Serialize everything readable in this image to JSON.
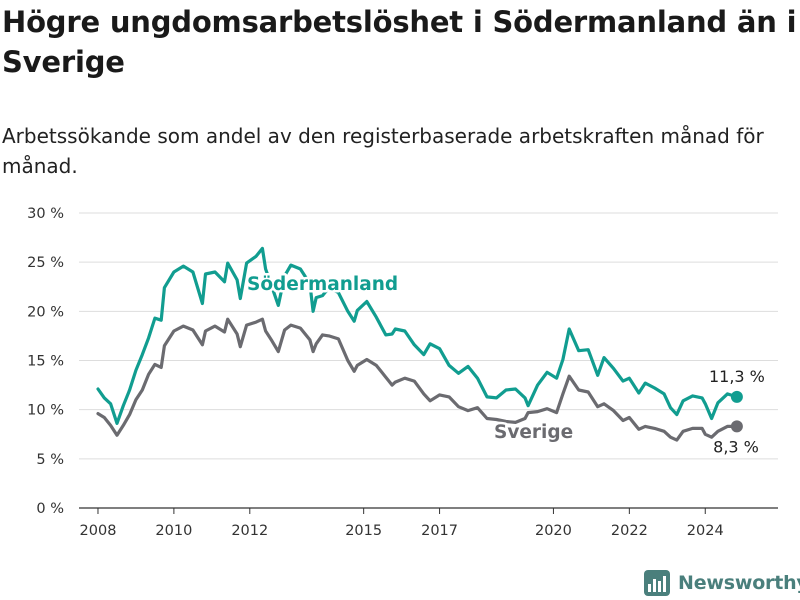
{
  "title": "Högre ungdomsarbetslöshet i Södermanland än i Sverige",
  "subtitle": "Arbetssökande som andel av den registerbaserade arbetskraften månad för månad.",
  "brand": {
    "name": "Newsworthy",
    "icon": "bar-chart-logo-icon"
  },
  "colors": {
    "sodermanland": "#119d90",
    "sverige": "#6b6b70",
    "grid": "#dddddd"
  },
  "chart_data": {
    "type": "line",
    "title": "Högre ungdomsarbetslöshet i Södermanland än i Sverige",
    "subtitle": "Arbetssökande som andel av den registerbaserade arbetskraften månad för månad.",
    "xlabel": "",
    "ylabel": "",
    "x_ticks": [
      "2008",
      "2010",
      "2012",
      "2015",
      "2017",
      "2020",
      "2022",
      "2024"
    ],
    "y_ticks": [
      "0 %",
      "5 %",
      "10 %",
      "15 %",
      "20 %",
      "25 %",
      "30 %"
    ],
    "xlim": [
      "2007-07",
      "2025-12"
    ],
    "ylim": [
      0,
      30
    ],
    "grid": "horizontal",
    "legend": "inline labels",
    "series": [
      {
        "name": "Södermanland",
        "color": "#119d90",
        "end_label": "11,3 %",
        "points": [
          [
            "2008-01",
            12.1
          ],
          [
            "2008-03",
            11.2
          ],
          [
            "2008-05",
            10.6
          ],
          [
            "2008-07",
            8.6
          ],
          [
            "2008-09",
            10.4
          ],
          [
            "2008-11",
            12.0
          ],
          [
            "2009-01",
            14.0
          ],
          [
            "2009-03",
            15.6
          ],
          [
            "2009-05",
            17.3
          ],
          [
            "2009-07",
            19.3
          ],
          [
            "2009-09",
            19.1
          ],
          [
            "2009-10",
            22.4
          ],
          [
            "2010-01",
            24.0
          ],
          [
            "2010-04",
            24.6
          ],
          [
            "2010-07",
            24.0
          ],
          [
            "2010-10",
            20.8
          ],
          [
            "2010-11",
            23.8
          ],
          [
            "2011-02",
            24.0
          ],
          [
            "2011-05",
            23.0
          ],
          [
            "2011-06",
            24.9
          ],
          [
            "2011-09",
            23.2
          ],
          [
            "2011-10",
            21.3
          ],
          [
            "2011-12",
            24.9
          ],
          [
            "2012-03",
            25.6
          ],
          [
            "2012-05",
            26.4
          ],
          [
            "2012-06",
            24.3
          ],
          [
            "2012-08",
            22.5
          ],
          [
            "2012-10",
            20.6
          ],
          [
            "2012-12",
            23.6
          ],
          [
            "2013-02",
            24.7
          ],
          [
            "2013-05",
            24.3
          ],
          [
            "2013-08",
            22.8
          ],
          [
            "2013-09",
            20.0
          ],
          [
            "2013-10",
            21.4
          ],
          [
            "2013-12",
            21.6
          ],
          [
            "2014-02",
            22.4
          ],
          [
            "2014-05",
            21.9
          ],
          [
            "2014-08",
            20.0
          ],
          [
            "2014-10",
            19.0
          ],
          [
            "2014-11",
            20.1
          ],
          [
            "2015-02",
            21.0
          ],
          [
            "2015-05",
            19.4
          ],
          [
            "2015-08",
            17.6
          ],
          [
            "2015-10",
            17.7
          ],
          [
            "2015-11",
            18.2
          ],
          [
            "2016-02",
            18.0
          ],
          [
            "2016-05",
            16.6
          ],
          [
            "2016-08",
            15.6
          ],
          [
            "2016-10",
            16.7
          ],
          [
            "2017-01",
            16.2
          ],
          [
            "2017-04",
            14.5
          ],
          [
            "2017-07",
            13.7
          ],
          [
            "2017-10",
            14.4
          ],
          [
            "2018-01",
            13.2
          ],
          [
            "2018-04",
            11.3
          ],
          [
            "2018-07",
            11.2
          ],
          [
            "2018-10",
            12.0
          ],
          [
            "2019-01",
            12.1
          ],
          [
            "2019-04",
            11.2
          ],
          [
            "2019-05",
            10.4
          ],
          [
            "2019-08",
            12.5
          ],
          [
            "2019-11",
            13.8
          ],
          [
            "2020-02",
            13.2
          ],
          [
            "2020-04",
            15.1
          ],
          [
            "2020-06",
            18.2
          ],
          [
            "2020-09",
            16.0
          ],
          [
            "2020-12",
            16.1
          ],
          [
            "2021-03",
            13.5
          ],
          [
            "2021-05",
            15.3
          ],
          [
            "2021-08",
            14.2
          ],
          [
            "2021-11",
            12.9
          ],
          [
            "2022-01",
            13.2
          ],
          [
            "2022-04",
            11.7
          ],
          [
            "2022-06",
            12.7
          ],
          [
            "2022-09",
            12.2
          ],
          [
            "2022-12",
            11.6
          ],
          [
            "2023-02",
            10.2
          ],
          [
            "2023-04",
            9.5
          ],
          [
            "2023-06",
            10.9
          ],
          [
            "2023-09",
            11.4
          ],
          [
            "2023-12",
            11.2
          ],
          [
            "2024-01",
            10.6
          ],
          [
            "2024-03",
            9.1
          ],
          [
            "2024-05",
            10.7
          ],
          [
            "2024-08",
            11.6
          ],
          [
            "2024-11",
            11.3
          ]
        ]
      },
      {
        "name": "Sverige",
        "color": "#6b6b70",
        "end_label": "8,3 %",
        "points": [
          [
            "2008-01",
            9.6
          ],
          [
            "2008-03",
            9.2
          ],
          [
            "2008-05",
            8.4
          ],
          [
            "2008-07",
            7.4
          ],
          [
            "2008-09",
            8.4
          ],
          [
            "2008-11",
            9.5
          ],
          [
            "2009-01",
            11.0
          ],
          [
            "2009-03",
            12.0
          ],
          [
            "2009-05",
            13.6
          ],
          [
            "2009-07",
            14.6
          ],
          [
            "2009-09",
            14.3
          ],
          [
            "2009-10",
            16.5
          ],
          [
            "2010-01",
            18.0
          ],
          [
            "2010-04",
            18.5
          ],
          [
            "2010-07",
            18.1
          ],
          [
            "2010-10",
            16.6
          ],
          [
            "2010-11",
            18.0
          ],
          [
            "2011-02",
            18.5
          ],
          [
            "2011-05",
            17.9
          ],
          [
            "2011-06",
            19.2
          ],
          [
            "2011-09",
            17.7
          ],
          [
            "2011-10",
            16.4
          ],
          [
            "2011-12",
            18.6
          ],
          [
            "2012-03",
            18.9
          ],
          [
            "2012-05",
            19.2
          ],
          [
            "2012-06",
            18.0
          ],
          [
            "2012-08",
            17.0
          ],
          [
            "2012-10",
            15.9
          ],
          [
            "2012-12",
            18.1
          ],
          [
            "2013-02",
            18.6
          ],
          [
            "2013-05",
            18.3
          ],
          [
            "2013-08",
            17.1
          ],
          [
            "2013-09",
            15.9
          ],
          [
            "2013-10",
            16.7
          ],
          [
            "2013-12",
            17.6
          ],
          [
            "2014-02",
            17.5
          ],
          [
            "2014-05",
            17.2
          ],
          [
            "2014-08",
            15.0
          ],
          [
            "2014-10",
            13.9
          ],
          [
            "2014-11",
            14.5
          ],
          [
            "2015-02",
            15.1
          ],
          [
            "2015-05",
            14.5
          ],
          [
            "2015-08",
            13.3
          ],
          [
            "2015-10",
            12.5
          ],
          [
            "2015-11",
            12.8
          ],
          [
            "2016-02",
            13.2
          ],
          [
            "2016-05",
            12.9
          ],
          [
            "2016-08",
            11.6
          ],
          [
            "2016-10",
            10.9
          ],
          [
            "2017-01",
            11.5
          ],
          [
            "2017-04",
            11.3
          ],
          [
            "2017-07",
            10.3
          ],
          [
            "2017-10",
            9.9
          ],
          [
            "2018-01",
            10.2
          ],
          [
            "2018-04",
            9.1
          ],
          [
            "2018-07",
            9.0
          ],
          [
            "2018-10",
            8.8
          ],
          [
            "2019-01",
            8.7
          ],
          [
            "2019-04",
            9.1
          ],
          [
            "2019-05",
            9.7
          ],
          [
            "2019-08",
            9.8
          ],
          [
            "2019-11",
            10.1
          ],
          [
            "2020-02",
            9.7
          ],
          [
            "2020-04",
            11.6
          ],
          [
            "2020-06",
            13.4
          ],
          [
            "2020-09",
            12.0
          ],
          [
            "2020-12",
            11.8
          ],
          [
            "2021-03",
            10.3
          ],
          [
            "2021-05",
            10.6
          ],
          [
            "2021-08",
            9.9
          ],
          [
            "2021-11",
            8.9
          ],
          [
            "2022-01",
            9.2
          ],
          [
            "2022-04",
            8.0
          ],
          [
            "2022-06",
            8.3
          ],
          [
            "2022-09",
            8.1
          ],
          [
            "2022-12",
            7.8
          ],
          [
            "2023-02",
            7.2
          ],
          [
            "2023-04",
            6.9
          ],
          [
            "2023-06",
            7.8
          ],
          [
            "2023-09",
            8.1
          ],
          [
            "2023-12",
            8.1
          ],
          [
            "2024-01",
            7.5
          ],
          [
            "2024-03",
            7.2
          ],
          [
            "2024-05",
            7.8
          ],
          [
            "2024-08",
            8.3
          ],
          [
            "2024-11",
            8.3
          ]
        ]
      }
    ]
  }
}
